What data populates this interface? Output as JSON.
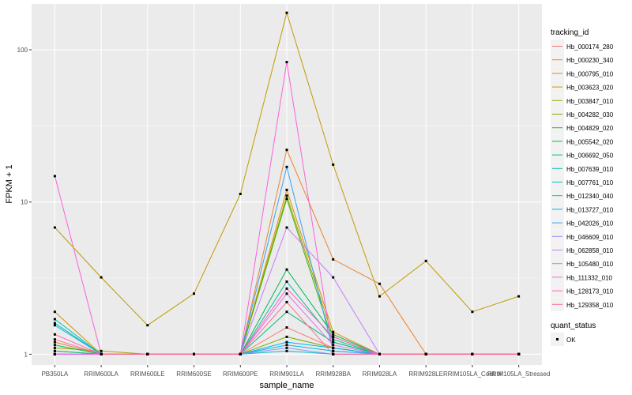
{
  "chart_data": {
    "type": "line",
    "title": "",
    "xlabel": "sample_name",
    "ylabel": "FPKM + 1",
    "y_scale": "log10",
    "ylim": [
      0.85,
      200
    ],
    "y_ticks": [
      1,
      10,
      100
    ],
    "y_tick_labels": [
      "1",
      "10",
      "100"
    ],
    "categories": [
      "PB350LA",
      "RRIM600LA",
      "RRIM600LE",
      "RRIM600SE",
      "RRIM600PE",
      "RRIM901LA",
      "RRIM928BA",
      "RRIM928LA",
      "RRIM928LE",
      "RRIM105LA_Control",
      "RRIM105LA_Stressed"
    ],
    "grid": true,
    "legend_position": "right",
    "legend": {
      "title": "tracking_id",
      "status_title": "quant_status",
      "status_label": "OK"
    },
    "series": [
      {
        "name": "Hb_000174_280",
        "color": "#F8766D",
        "values": [
          1.0,
          1.0,
          1.0,
          1.0,
          1.0,
          1.5,
          1.1,
          1.0,
          1.0,
          1.0,
          1.0
        ]
      },
      {
        "name": "Hb_000230_340",
        "color": "#EA8331",
        "values": [
          1.2,
          1.0,
          1.0,
          1.0,
          1.0,
          22,
          4.2,
          2.9,
          1.0,
          1.0,
          1.0
        ]
      },
      {
        "name": "Hb_000795_010",
        "color": "#D89000",
        "values": [
          1.9,
          1.0,
          1.0,
          1.0,
          1.0,
          12,
          1.4,
          1.0,
          1.0,
          1.0,
          1.0
        ]
      },
      {
        "name": "Hb_003623_020",
        "color": "#C09B00",
        "values": [
          6.8,
          3.2,
          1.55,
          2.5,
          11.3,
          175,
          17.6,
          2.4,
          4.1,
          1.9,
          2.4
        ]
      },
      {
        "name": "Hb_003847_010",
        "color": "#A3A500",
        "values": [
          1.1,
          1.05,
          1.0,
          1.0,
          1.0,
          11,
          1.3,
          1.0,
          1.0,
          1.0,
          1.0
        ]
      },
      {
        "name": "Hb_004282_030",
        "color": "#7CAE00",
        "values": [
          1.05,
          1.0,
          1.0,
          1.0,
          1.0,
          1.3,
          1.1,
          1.0,
          1.0,
          1.0,
          1.0
        ]
      },
      {
        "name": "Hb_004829_020",
        "color": "#39B600",
        "values": [
          1.0,
          1.0,
          1.0,
          1.0,
          1.0,
          10.5,
          1.2,
          1.0,
          1.0,
          1.0,
          1.0
        ]
      },
      {
        "name": "Hb_005542_020",
        "color": "#00BB4E",
        "values": [
          1.15,
          1.0,
          1.0,
          1.0,
          1.0,
          3.6,
          1.35,
          1.0,
          1.0,
          1.0,
          1.0
        ]
      },
      {
        "name": "Hb_006692_050",
        "color": "#00BF7D",
        "values": [
          1.05,
          1.0,
          1.0,
          1.0,
          1.0,
          1.9,
          1.2,
          1.0,
          1.0,
          1.0,
          1.0
        ]
      },
      {
        "name": "Hb_007639_010",
        "color": "#00C1A3",
        "values": [
          1.7,
          1.0,
          1.0,
          1.0,
          1.0,
          3.0,
          1.25,
          1.0,
          1.0,
          1.0,
          1.0
        ]
      },
      {
        "name": "Hb_007761_010",
        "color": "#00BFC4",
        "values": [
          1.6,
          1.0,
          1.0,
          1.0,
          1.0,
          1.05,
          1.0,
          1.0,
          1.0,
          1.0,
          1.0
        ]
      },
      {
        "name": "Hb_012340_040",
        "color": "#00BAE0",
        "values": [
          1.55,
          1.0,
          1.0,
          1.0,
          1.0,
          1.15,
          1.05,
          1.0,
          1.0,
          1.0,
          1.0
        ]
      },
      {
        "name": "Hb_013727_010",
        "color": "#00B0F6",
        "values": [
          1.0,
          1.0,
          1.0,
          1.0,
          1.0,
          1.2,
          1.1,
          1.0,
          1.0,
          1.0,
          1.0
        ]
      },
      {
        "name": "Hb_042026_010",
        "color": "#35A2FF",
        "values": [
          1.0,
          1.0,
          1.0,
          1.0,
          1.0,
          17,
          1.05,
          1.0,
          1.0,
          1.0,
          1.0
        ]
      },
      {
        "name": "Hb_046609_010",
        "color": "#9590FF",
        "values": [
          1.0,
          1.0,
          1.0,
          1.0,
          1.0,
          1.1,
          1.0,
          1.0,
          1.0,
          1.0,
          1.0
        ]
      },
      {
        "name": "Hb_062858_010",
        "color": "#C77CFF",
        "values": [
          1.0,
          1.0,
          1.0,
          1.0,
          1.0,
          6.8,
          3.2,
          1.0,
          1.0,
          1.0,
          1.0
        ]
      },
      {
        "name": "Hb_105480_010",
        "color": "#E76BF3",
        "values": [
          1.0,
          1.0,
          1.0,
          1.0,
          1.0,
          2.5,
          1.15,
          1.0,
          1.0,
          1.0,
          1.0
        ]
      },
      {
        "name": "Hb_111332_010",
        "color": "#FA62DB",
        "values": [
          14.8,
          1.0,
          1.0,
          1.0,
          1.0,
          83,
          1.0,
          1.0,
          1.0,
          1.0,
          1.0
        ]
      },
      {
        "name": "Hb_128173_010",
        "color": "#FF62BC",
        "values": [
          1.35,
          1.0,
          1.0,
          1.0,
          1.0,
          2.7,
          1.3,
          1.0,
          1.0,
          1.0,
          1.0
        ]
      },
      {
        "name": "Hb_129358_010",
        "color": "#FF6C91",
        "values": [
          1.25,
          1.0,
          1.0,
          1.0,
          1.0,
          2.2,
          1.0,
          1.0,
          1.0,
          1.0,
          1.0
        ]
      }
    ]
  }
}
